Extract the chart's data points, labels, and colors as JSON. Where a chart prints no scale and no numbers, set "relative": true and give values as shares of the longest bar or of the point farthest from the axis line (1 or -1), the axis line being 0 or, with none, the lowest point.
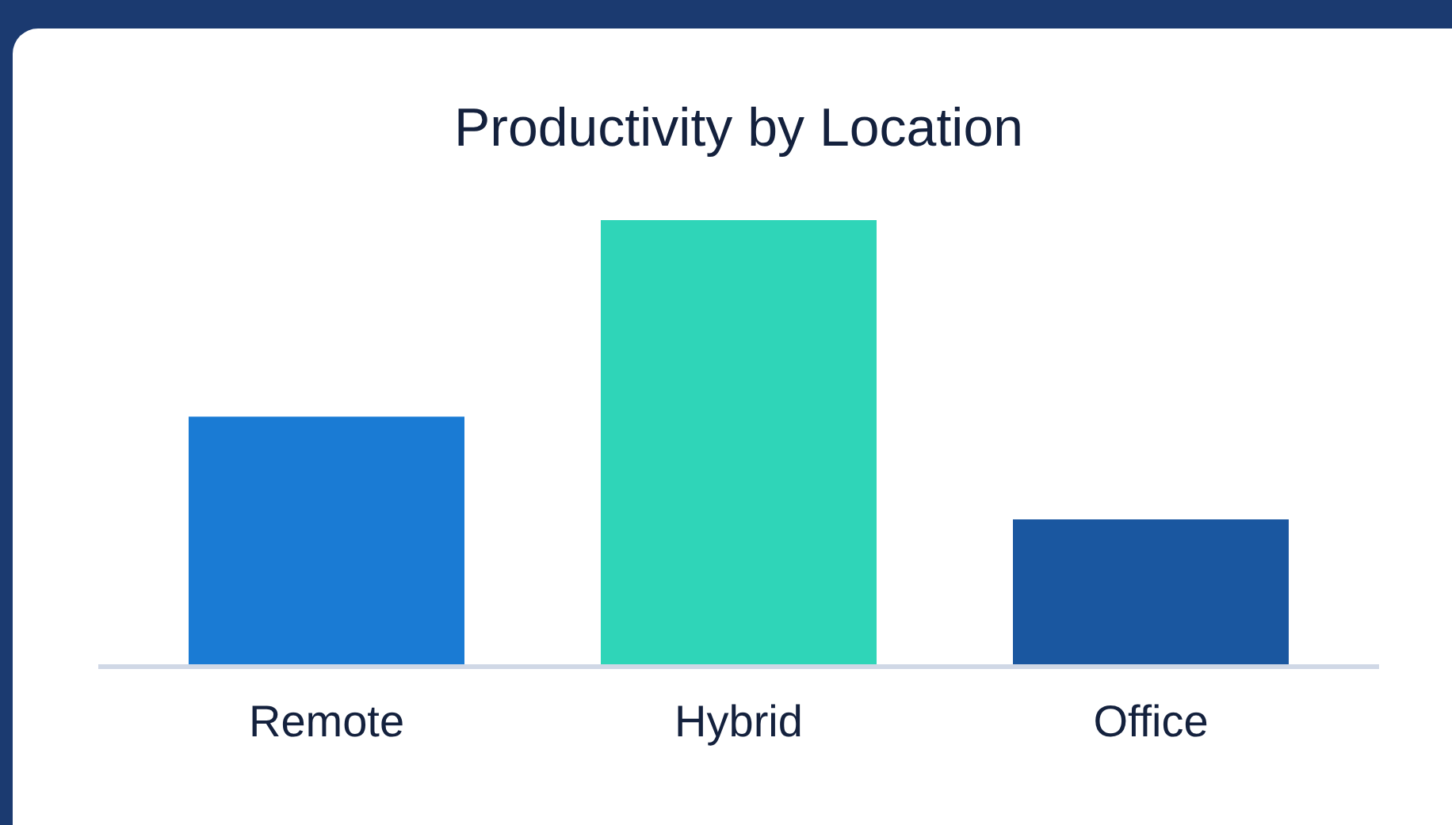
{
  "chart_data": {
    "type": "bar",
    "title": "Productivity by Location",
    "relative": true,
    "categories": [
      "Remote",
      "Hybrid",
      "Office"
    ],
    "values": [
      0.56,
      1,
      0.33
    ],
    "colors": [
      "#1a7bd4",
      "#2fd5b8",
      "#1a57a0"
    ]
  }
}
